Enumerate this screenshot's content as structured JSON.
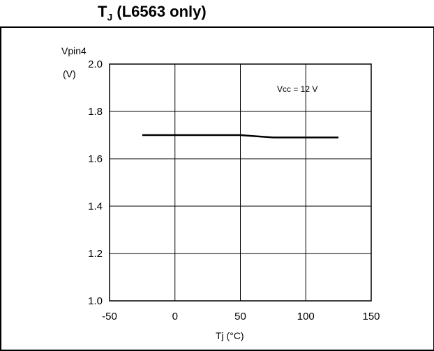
{
  "title_main": "T",
  "title_sub": "J",
  "title_rest": " (L6563 only)",
  "chart_data": {
    "type": "line",
    "ylabel_line1": "Vpin4",
    "ylabel_line2": "(V)",
    "xlabel": "Tj  (°C)",
    "annotation": "Vcc = 12 V",
    "xlim": [
      -50,
      150
    ],
    "ylim": [
      1.0,
      2.0
    ],
    "x_ticks": [
      -50,
      0,
      50,
      100,
      150
    ],
    "y_ticks": [
      1.0,
      1.2,
      1.4,
      1.6,
      1.8,
      2.0
    ],
    "x_tick_labels": [
      "-50",
      "0",
      "50",
      "100",
      "150"
    ],
    "y_tick_labels": [
      "1.0",
      "1.2",
      "1.4",
      "1.6",
      "1.8",
      "2.0"
    ],
    "grid": true,
    "series": [
      {
        "x": [
          -25,
          0,
          25,
          50,
          75,
          100,
          125
        ],
        "y": [
          1.7,
          1.7,
          1.7,
          1.7,
          1.69,
          1.69,
          1.69
        ]
      }
    ]
  }
}
